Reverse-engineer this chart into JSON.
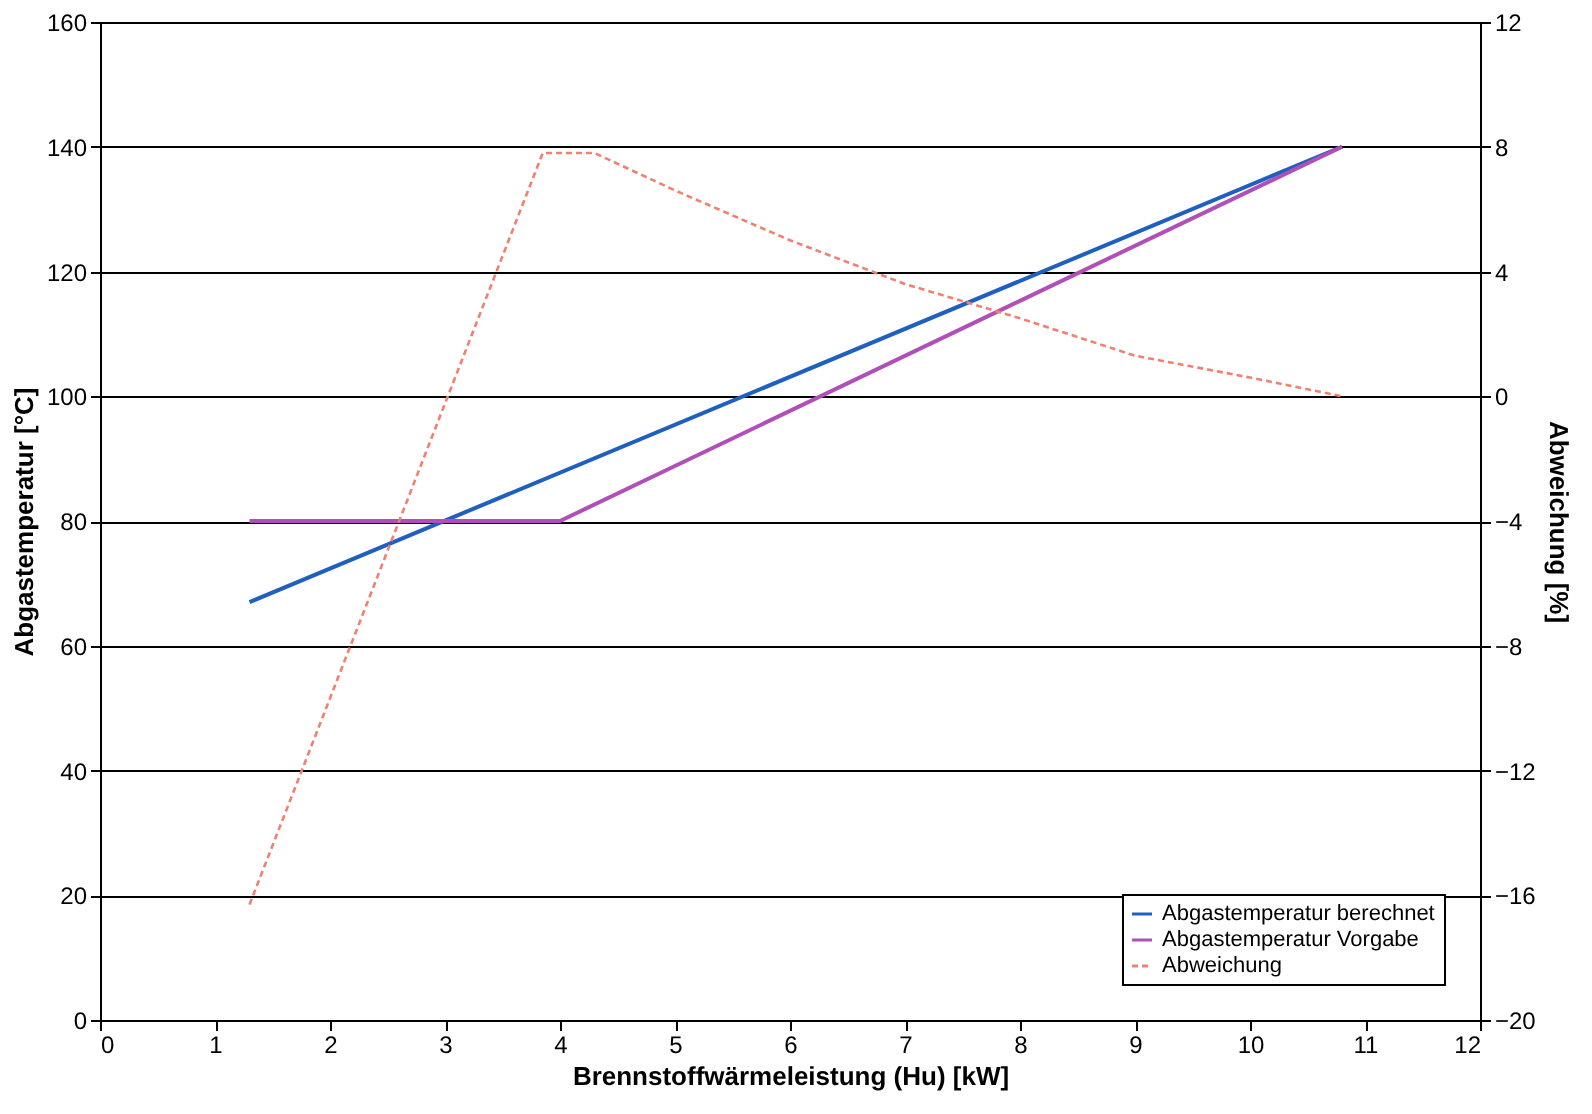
{
  "chart_data": {
    "type": "line",
    "xlabel": "Brennstoffwärmeleistung (Hu) [kW]",
    "ylabel": "Abgastemperatur [°C]",
    "y2label": "Abweichung [%]",
    "xlim": [
      0,
      12
    ],
    "xticks": [
      0,
      1,
      2,
      3,
      4,
      5,
      6,
      7,
      8,
      9,
      10,
      11,
      12
    ],
    "ylim": [
      0,
      160
    ],
    "yticks": [
      0,
      20,
      40,
      60,
      80,
      100,
      120,
      140,
      160
    ],
    "y2lim": [
      -20,
      12
    ],
    "y2ticks": [
      -20,
      -16,
      -12,
      -8,
      -4,
      0,
      4,
      8,
      12
    ],
    "grid": "y",
    "legend": "bottom right",
    "marker": "none",
    "series": [
      {
        "name": "Abgastemperatur berechnet",
        "color": "#1f5fbf",
        "x": [
          1.3,
          10.8
        ],
        "values": [
          67,
          140
        ],
        "line_style": "solid"
      },
      {
        "name": "Abgastemperatur Vorgabe",
        "color": "#b04fb8",
        "x": [
          1.3,
          4.0,
          10.8
        ],
        "values": [
          80,
          80,
          140
        ],
        "line_style": "solid"
      },
      {
        "name": "Abweichung",
        "color": "#f08070",
        "axis": "y2",
        "x": [
          1.3,
          3.85,
          4.3,
          5,
          6,
          7,
          8,
          9,
          10,
          10.8
        ],
        "values": [
          -16.3,
          7.8,
          7.8,
          6.6,
          5.0,
          3.6,
          2.5,
          1.3,
          0.6,
          0
        ],
        "line_style": "dashed"
      }
    ]
  }
}
